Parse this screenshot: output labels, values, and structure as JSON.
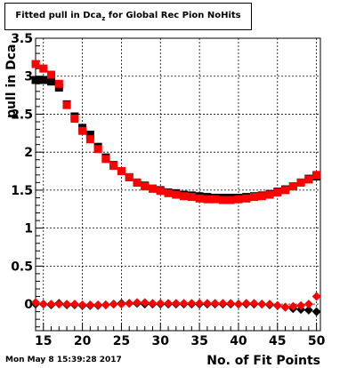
{
  "title": {
    "main": "Fitted pull in Dca",
    "subscript": "z",
    "suffix": " for Global Rec Pion NoHits"
  },
  "timestamp": "Mon May  8 15:39:28 2017",
  "chart_data": {
    "type": "scatter",
    "xlabel": "No. of Fit Points",
    "ylabel": "pull in Dca",
    "xlim": [
      14,
      50.5
    ],
    "ylim": [
      -0.35,
      3.5
    ],
    "x_ticks": [
      15,
      20,
      25,
      30,
      35,
      40,
      45,
      50
    ],
    "y_ticks": [
      0,
      0.5,
      1,
      1.5,
      2,
      2.5,
      3,
      3.5
    ],
    "y_tick_labels": [
      "0",
      "0.5",
      "1",
      "1.5",
      "2",
      "2.5",
      "3",
      "3.5"
    ],
    "grid": true,
    "x": [
      14,
      15,
      16,
      17,
      18,
      19,
      20,
      21,
      22,
      23,
      24,
      25,
      26,
      27,
      28,
      29,
      30,
      31,
      32,
      33,
      34,
      35,
      36,
      37,
      38,
      39,
      40,
      41,
      42,
      43,
      44,
      45,
      46,
      47,
      48,
      49,
      50
    ],
    "series": [
      {
        "marker": "square",
        "color": "#000000",
        "values": [
          2.95,
          2.95,
          2.93,
          2.85,
          2.63,
          2.47,
          2.32,
          2.23,
          2.07,
          1.93,
          1.83,
          1.75,
          1.67,
          1.6,
          1.56,
          1.52,
          1.5,
          1.47,
          1.46,
          1.44,
          1.43,
          1.42,
          1.41,
          1.4,
          1.4,
          1.4,
          1.4,
          1.41,
          1.42,
          1.43,
          1.45,
          1.48,
          1.51,
          1.55,
          1.6,
          1.65,
          1.68
        ]
      },
      {
        "marker": "square",
        "color": "#ff0000",
        "values": [
          3.16,
          3.1,
          3.02,
          2.9,
          2.62,
          2.44,
          2.28,
          2.17,
          2.04,
          1.91,
          1.82,
          1.75,
          1.67,
          1.6,
          1.55,
          1.52,
          1.49,
          1.46,
          1.44,
          1.42,
          1.41,
          1.39,
          1.38,
          1.38,
          1.37,
          1.37,
          1.38,
          1.39,
          1.41,
          1.42,
          1.44,
          1.47,
          1.5,
          1.55,
          1.6,
          1.64,
          1.7
        ]
      },
      {
        "marker": "diamond",
        "color": "#000000",
        "values": [
          0.0,
          0.0,
          -0.01,
          0.01,
          -0.01,
          -0.01,
          -0.02,
          -0.02,
          -0.02,
          -0.01,
          0.0,
          0.01,
          0.01,
          0.01,
          0.0,
          0.0,
          0.0,
          0.0,
          0.0,
          0.0,
          0.0,
          0.0,
          0.0,
          0.0,
          0.0,
          0.0,
          0.0,
          0.0,
          0.0,
          0.0,
          -0.01,
          -0.02,
          -0.04,
          -0.06,
          -0.07,
          -0.08,
          -0.1
        ]
      },
      {
        "marker": "diamond",
        "color": "#ff0000",
        "values": [
          0.02,
          0.0,
          0.0,
          0.0,
          0.0,
          0.0,
          -0.01,
          -0.01,
          -0.01,
          -0.01,
          0.0,
          0.0,
          0.01,
          0.02,
          0.02,
          0.01,
          0.01,
          0.01,
          0.01,
          0.01,
          0.01,
          0.01,
          0.01,
          0.01,
          0.01,
          0.01,
          0.0,
          0.01,
          0.01,
          0.0,
          0.0,
          -0.02,
          -0.04,
          -0.03,
          -0.02,
          0.0,
          0.1
        ]
      }
    ]
  }
}
